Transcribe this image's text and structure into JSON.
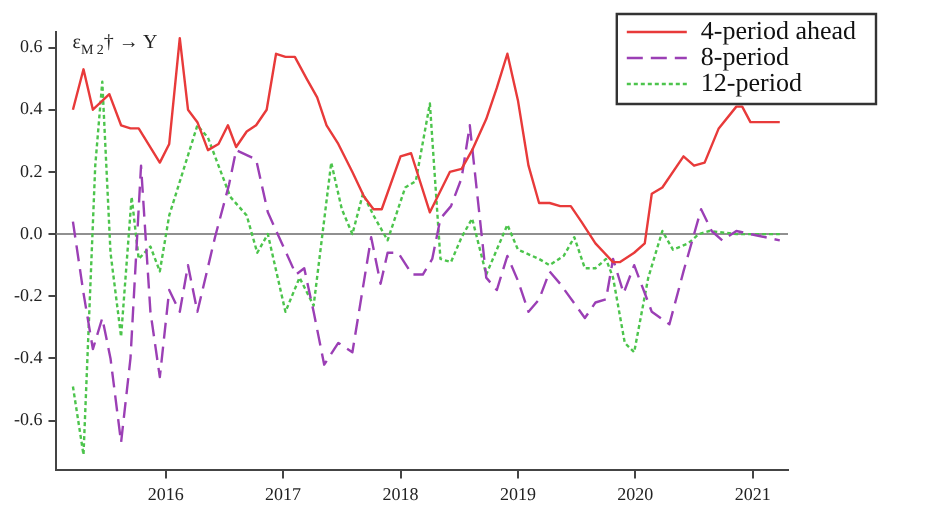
{
  "chart_data": {
    "type": "line",
    "ylabel": "ε$_{M 2}$† → Y",
    "xlim": [
      2015.07,
      2021.3
    ],
    "ylim": [
      -0.76,
      0.65
    ],
    "xticks": [
      2016,
      2017,
      2018,
      2019,
      2020,
      2021
    ],
    "yticks": [
      {
        "value": -0.6,
        "label": "-0.6"
      },
      {
        "value": -0.4,
        "label": "-0.4"
      },
      {
        "value": -0.2,
        "label": "-0.2"
      },
      {
        "value": 0,
        "label": "0.0"
      },
      {
        "value": 0.2,
        "label": "0.2"
      },
      {
        "value": 0.4,
        "label": "0.4"
      },
      {
        "value": 0.6,
        "label": "0.6"
      }
    ],
    "grid": false,
    "legend": "top right",
    "marker": "none",
    "ref_lines": [
      {
        "axis": "y",
        "value": 0,
        "color": "#909090"
      }
    ],
    "series": [
      {
        "name": "4-period ahead",
        "color": "#e83a3a",
        "line_style": "solid",
        "x": [
          2015.21,
          2015.3,
          2015.38,
          2015.52,
          2015.62,
          2015.7,
          2015.77,
          2015.95,
          2016.03,
          2016.12,
          2016.19,
          2016.27,
          2016.36,
          2016.45,
          2016.53,
          2016.6,
          2016.69,
          2016.77,
          2016.86,
          2016.94,
          2017.02,
          2017.1,
          2017.2,
          2017.29,
          2017.37,
          2017.47,
          2017.59,
          2017.69,
          2017.77,
          2017.84,
          2018.0,
          2018.09,
          2018.25,
          2018.42,
          2018.52,
          2018.61,
          2018.73,
          2018.82,
          2018.91,
          2019.0,
          2019.09,
          2019.18,
          2019.27,
          2019.36,
          2019.45,
          2019.54,
          2019.66,
          2019.81,
          2019.87,
          2019.99,
          2020.08,
          2020.14,
          2020.23,
          2020.41,
          2020.5,
          2020.59,
          2020.71,
          2020.86,
          2020.91,
          2020.98,
          2021.23
        ],
        "values": [
          0.4,
          0.53,
          0.4,
          0.45,
          0.35,
          0.34,
          0.34,
          0.23,
          0.29,
          0.63,
          0.4,
          0.36,
          0.27,
          0.29,
          0.35,
          0.28,
          0.33,
          0.35,
          0.4,
          0.58,
          0.57,
          0.57,
          0.5,
          0.44,
          0.35,
          0.29,
          0.2,
          0.12,
          0.08,
          0.08,
          0.25,
          0.26,
          0.07,
          0.2,
          0.21,
          0.27,
          0.37,
          0.47,
          0.58,
          0.43,
          0.22,
          0.1,
          0.1,
          0.09,
          0.09,
          0.04,
          -0.03,
          -0.09,
          -0.09,
          -0.06,
          -0.03,
          0.13,
          0.15,
          0.25,
          0.22,
          0.23,
          0.34,
          0.41,
          0.41,
          0.36,
          0.36
        ]
      },
      {
        "name": "8-period",
        "color": "#9b3fb5",
        "line_style": "dashed",
        "x": [
          2015.21,
          2015.3,
          2015.38,
          2015.46,
          2015.53,
          2015.62,
          2015.7,
          2015.79,
          2015.87,
          2015.95,
          2016.03,
          2016.12,
          2016.19,
          2016.27,
          2016.42,
          2016.54,
          2016.6,
          2016.77,
          2016.87,
          2016.99,
          2017.11,
          2017.18,
          2017.26,
          2017.35,
          2017.47,
          2017.59,
          2017.75,
          2017.83,
          2017.89,
          2017.98,
          2018.1,
          2018.19,
          2018.27,
          2018.34,
          2018.43,
          2018.52,
          2018.59,
          2018.73,
          2018.82,
          2018.91,
          2019.0,
          2019.09,
          2019.18,
          2019.27,
          2019.36,
          2019.57,
          2019.66,
          2019.75,
          2019.81,
          2019.9,
          2019.99,
          2020.14,
          2020.29,
          2020.41,
          2020.56,
          2020.65,
          2020.74,
          2020.86,
          2020.98,
          2021.23
        ],
        "values": [
          0.04,
          -0.19,
          -0.37,
          -0.27,
          -0.4,
          -0.67,
          -0.4,
          0.22,
          -0.25,
          -0.46,
          -0.18,
          -0.25,
          -0.1,
          -0.25,
          -0.01,
          0.16,
          0.27,
          0.24,
          0.07,
          -0.03,
          -0.13,
          -0.11,
          -0.25,
          -0.42,
          -0.35,
          -0.38,
          -0.01,
          -0.16,
          -0.06,
          -0.06,
          -0.13,
          -0.13,
          -0.08,
          0.05,
          0.09,
          0.18,
          0.35,
          -0.14,
          -0.18,
          -0.07,
          -0.15,
          -0.25,
          -0.21,
          -0.12,
          -0.16,
          -0.27,
          -0.22,
          -0.21,
          -0.08,
          -0.19,
          -0.1,
          -0.25,
          -0.29,
          -0.12,
          0.08,
          0.01,
          -0.02,
          0.01,
          0.0,
          -0.02
        ]
      },
      {
        "name": "12-period",
        "color": "#4cc44c",
        "line_style": "dotted",
        "x": [
          2015.21,
          2015.3,
          2015.4,
          2015.46,
          2015.53,
          2015.62,
          2015.71,
          2015.77,
          2015.87,
          2015.95,
          2016.03,
          2016.27,
          2016.36,
          2016.55,
          2016.69,
          2016.78,
          2016.87,
          2017.02,
          2017.14,
          2017.26,
          2017.41,
          2017.5,
          2017.59,
          2017.68,
          2017.77,
          2017.89,
          2018.04,
          2018.13,
          2018.25,
          2018.34,
          2018.43,
          2018.52,
          2018.61,
          2018.73,
          2018.91,
          2019.0,
          2019.18,
          2019.27,
          2019.39,
          2019.48,
          2019.57,
          2019.66,
          2019.75,
          2019.81,
          2019.91,
          2019.99,
          2020.11,
          2020.23,
          2020.32,
          2020.45,
          2020.54,
          2020.63,
          2020.86,
          2021.23
        ],
        "values": [
          -0.49,
          -0.71,
          0.22,
          0.49,
          -0.06,
          -0.33,
          0.12,
          -0.08,
          -0.04,
          -0.12,
          0.06,
          0.35,
          0.31,
          0.12,
          0.06,
          -0.06,
          0.0,
          -0.25,
          -0.14,
          -0.23,
          0.23,
          0.08,
          0.0,
          0.13,
          0.06,
          -0.02,
          0.15,
          0.17,
          0.42,
          -0.08,
          -0.09,
          -0.01,
          0.05,
          -0.13,
          0.03,
          -0.05,
          -0.08,
          -0.1,
          -0.07,
          -0.01,
          -0.11,
          -0.11,
          -0.08,
          -0.14,
          -0.35,
          -0.38,
          -0.14,
          0.01,
          -0.05,
          -0.03,
          0.0,
          0.01,
          0.0,
          0.0
        ]
      }
    ]
  }
}
